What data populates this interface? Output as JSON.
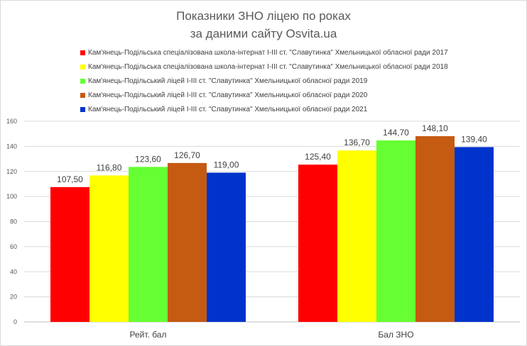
{
  "chart_data": {
    "type": "bar",
    "title_lines": [
      "Показники ЗНО ліцею по роках",
      "за даними сайту Osvita.ua"
    ],
    "categories": [
      "Рейт. бал",
      "Бал ЗНО"
    ],
    "series": [
      {
        "name": "Кам'янець-Подільська спеціалізована школа-інтернат І-ІІІ ст. \"Славутинка\" Хмельницької обласної ради 2017",
        "color": "#ff0000",
        "values": [
          107.5,
          125.4
        ],
        "labels": [
          "107,50",
          "125,40"
        ]
      },
      {
        "name": "Кам'янець-Подільська спеціалізована школа-інтернат І-ІІІ ст. \"Славутинка\" Хмельницької обласної ради 2018",
        "color": "#ffff00",
        "values": [
          116.8,
          136.7
        ],
        "labels": [
          "116,80",
          "136,70"
        ]
      },
      {
        "name": "Кам'янець-Подільський ліцей І-ІІІ ст. \"Славутинка\" Хмельницької обласної ради 2019",
        "color": "#66ff33",
        "values": [
          123.6,
          144.7
        ],
        "labels": [
          "123,60",
          "144,70"
        ]
      },
      {
        "name": "Кам'янець-Подільський ліцей І-ІІІ ст. \"Славутинка\" Хмельницької обласної ради 2020",
        "color": "#c55a11",
        "values": [
          126.7,
          148.1
        ],
        "labels": [
          "126,70",
          "148,10"
        ]
      },
      {
        "name": "Кам'янець-Подільський ліцей І-ІІІ ст. \"Славутинка\" Хмельницької обласної ради 2021",
        "color": "#0033cc",
        "values": [
          119.0,
          139.4
        ],
        "labels": [
          "119,00",
          "139,40"
        ]
      }
    ],
    "ylim": [
      0,
      160
    ],
    "yticks": [
      0,
      20,
      40,
      60,
      80,
      100,
      120,
      140,
      160
    ],
    "legend_position": "top",
    "grid": true
  }
}
